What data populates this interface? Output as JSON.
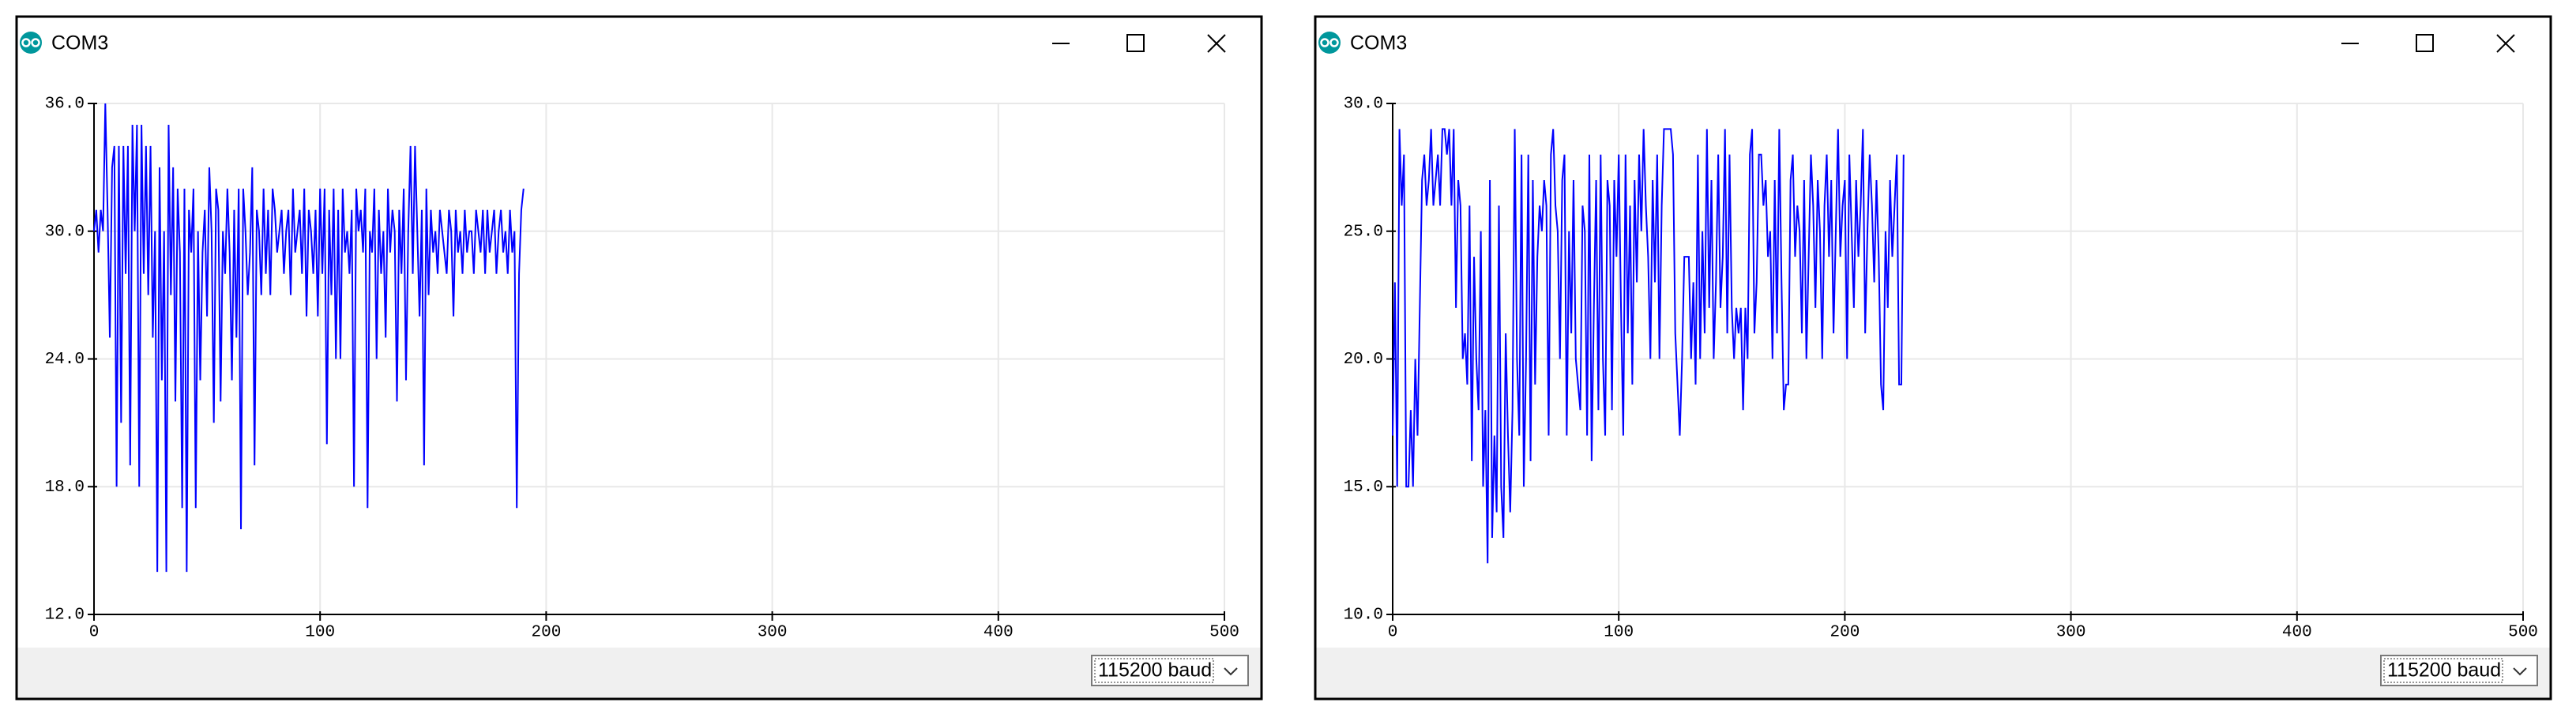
{
  "windows": [
    {
      "title": "COM3",
      "baud": "115200 baud"
    },
    {
      "title": "COM3",
      "baud": "115200 baud"
    }
  ],
  "chart_data": [
    {
      "type": "line",
      "color": "#0000ff",
      "values": [
        30,
        31,
        29,
        31,
        30,
        36,
        31,
        25,
        33,
        34,
        18,
        34,
        21,
        34,
        28,
        34,
        19,
        35,
        30,
        35,
        18,
        35,
        28,
        34,
        27,
        34,
        25,
        30,
        14,
        33,
        23,
        30,
        14,
        35,
        27,
        33,
        22,
        32,
        29,
        17,
        32,
        14,
        31,
        29,
        32,
        17,
        30,
        23,
        29,
        31,
        26,
        33,
        30,
        21,
        32,
        31,
        22,
        30,
        28,
        32,
        29,
        23,
        31,
        25,
        32,
        16,
        32,
        30,
        27,
        29,
        33,
        19,
        31,
        30,
        27,
        32,
        28,
        31,
        27,
        32,
        31,
        29,
        30,
        31,
        28,
        30,
        31,
        27,
        32,
        29,
        30,
        31,
        28,
        32,
        26,
        31,
        30,
        28,
        31,
        26,
        32,
        28,
        32,
        20,
        31,
        27,
        32,
        24,
        31,
        24,
        32,
        29,
        30,
        28,
        31,
        18,
        32,
        30,
        31,
        29,
        32,
        17,
        30,
        29,
        32,
        24,
        31,
        28,
        30,
        25,
        32,
        29,
        31,
        30,
        22,
        31,
        28,
        32,
        23,
        30,
        34,
        28,
        34,
        30,
        26,
        31,
        19,
        32,
        27,
        31,
        29,
        30,
        28,
        31,
        30,
        29,
        28,
        31,
        30,
        26,
        31,
        29,
        30,
        28,
        31,
        29,
        30,
        30,
        28,
        31,
        30,
        29,
        31,
        28,
        31,
        29,
        30,
        31,
        28,
        30,
        31,
        29,
        30,
        28,
        31,
        29,
        30,
        17,
        28,
        31,
        32
      ],
      "xlim": [
        0,
        500
      ],
      "xticks": [
        0,
        100,
        200,
        300,
        400,
        500
      ],
      "ylim": [
        12,
        36
      ],
      "yticks": [
        {
          "value": 12,
          "label": "12.0"
        },
        {
          "value": 18,
          "label": "18.0"
        },
        {
          "value": 24,
          "label": "24.0"
        },
        {
          "value": 30,
          "label": "30.0"
        },
        {
          "value": 36,
          "label": "36.0"
        }
      ],
      "grid": true
    },
    {
      "type": "line",
      "color": "#0000ff",
      "values": [
        17,
        23,
        15,
        29,
        26,
        28,
        15,
        15,
        18,
        15,
        20,
        17,
        22,
        27,
        28,
        26,
        27,
        29,
        26,
        27,
        28,
        26,
        29,
        29,
        28,
        29,
        26,
        29,
        22,
        27,
        26,
        20,
        21,
        19,
        26,
        16,
        24,
        20,
        18,
        25,
        15,
        18,
        12,
        27,
        13,
        17,
        14,
        26,
        15,
        13,
        21,
        17,
        14,
        18,
        29,
        20,
        17,
        28,
        15,
        20,
        28,
        16,
        27,
        19,
        24,
        26,
        25,
        27,
        26,
        17,
        28,
        29,
        26,
        25,
        20,
        27,
        28,
        17,
        25,
        21,
        27,
        20,
        19,
        18,
        26,
        25,
        17,
        28,
        16,
        22,
        27,
        18,
        28,
        20,
        17,
        27,
        26,
        18,
        27,
        24,
        28,
        22,
        17,
        28,
        21,
        26,
        19,
        27,
        23,
        28,
        25,
        29,
        26,
        24,
        20,
        27,
        23,
        28,
        20,
        26,
        29,
        29,
        29,
        29,
        28,
        21,
        19,
        17,
        20,
        24,
        24,
        24,
        20,
        23,
        19,
        28,
        20,
        25,
        21,
        29,
        22,
        27,
        20,
        23,
        28,
        22,
        24,
        29,
        21,
        28,
        22,
        20,
        22,
        21,
        22,
        18,
        22,
        20,
        28,
        29,
        21,
        23,
        28,
        28,
        26,
        27,
        24,
        25,
        20,
        27,
        21,
        29,
        23,
        18,
        19,
        19,
        27,
        28,
        24,
        26,
        25,
        21,
        27,
        20,
        24,
        28,
        26,
        22,
        27,
        25,
        20,
        26,
        28,
        24,
        27,
        21,
        25,
        29,
        24,
        26,
        27,
        20,
        28,
        25,
        22,
        27,
        24,
        26,
        29,
        21,
        25,
        28,
        26,
        23,
        27,
        24,
        19,
        18,
        25,
        22,
        27,
        24,
        26,
        28,
        19,
        19,
        28
      ],
      "xlim": [
        0,
        500
      ],
      "xticks": [
        0,
        100,
        200,
        300,
        400,
        500
      ],
      "ylim": [
        10,
        30
      ],
      "yticks": [
        {
          "value": 10,
          "label": "10.0"
        },
        {
          "value": 15,
          "label": "15.0"
        },
        {
          "value": 20,
          "label": "20.0"
        },
        {
          "value": 25,
          "label": "25.0"
        },
        {
          "value": 30,
          "label": "30.0"
        }
      ],
      "grid": true
    }
  ]
}
